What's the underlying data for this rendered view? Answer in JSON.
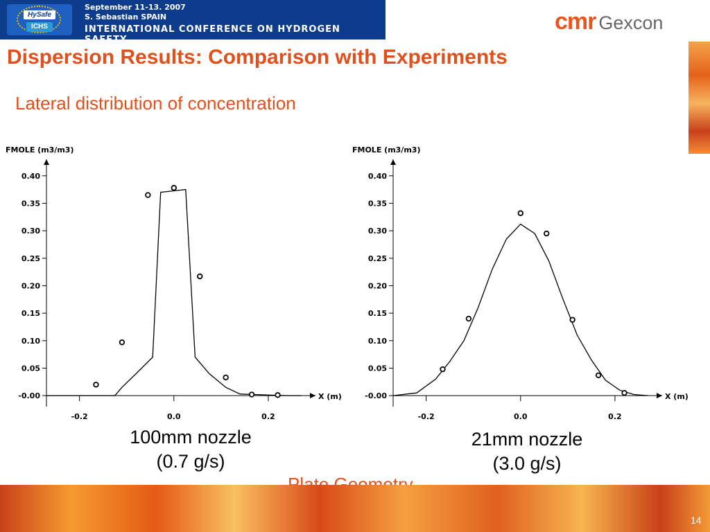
{
  "header": {
    "line1": "September 11-13. 2007",
    "line2": "S. Sebastian SPAIN",
    "line3": "INTERNATIONAL CONFERENCE ON HYDROGEN SAFETY",
    "logo_text_1": "HySafe",
    "logo_text_2": "ICHS",
    "brand_1": "cmr",
    "brand_2": "Gexcon"
  },
  "title": "Dispersion Results: Comparison with Experiments",
  "subtitle": "Lateral distribution of concentration",
  "footnote": "Plate Geometry",
  "page_number": "14",
  "captions": {
    "left_1": "100mm nozzle",
    "left_2": "(0.7 g/s)",
    "right_1": "21mm nozzle",
    "right_2": "(3.0 g/s)"
  },
  "colors": {
    "accent": "#e0501c",
    "banner": "#0d3c8c"
  },
  "chart_data": [
    {
      "type": "line",
      "ylabel": "FMOLE (m3/m3)",
      "xlabel": "X (m)",
      "xlim": [
        -0.27,
        0.3
      ],
      "ylim": [
        -0.02,
        0.43
      ],
      "xticks": [
        -0.2,
        0.0,
        0.2
      ],
      "xtick_labels": [
        "-0.2",
        "0.0",
        "0.2"
      ],
      "yticks": [
        0.0,
        0.05,
        0.1,
        0.15,
        0.2,
        0.25,
        0.3,
        0.35,
        0.4
      ],
      "ytick_labels": [
        "-0.00",
        "0.05",
        "0.10",
        "0.15",
        "0.20",
        "0.25",
        "0.30",
        "0.35",
        "0.40"
      ],
      "grid": false,
      "series": [
        {
          "kind": "line",
          "points": [
            [
              -0.27,
              0.0
            ],
            [
              -0.125,
              0.0
            ],
            [
              -0.11,
              0.015
            ],
            [
              -0.08,
              0.04
            ],
            [
              -0.045,
              0.07
            ],
            [
              -0.028,
              0.37
            ],
            [
              0.025,
              0.375
            ],
            [
              0.045,
              0.07
            ],
            [
              0.075,
              0.04
            ],
            [
              0.11,
              0.015
            ],
            [
              0.14,
              0.003
            ],
            [
              0.24,
              0.0
            ],
            [
              0.27,
              0.0
            ]
          ]
        },
        {
          "kind": "scatter",
          "points": [
            [
              -0.165,
              0.02
            ],
            [
              -0.11,
              0.097
            ],
            [
              -0.055,
              0.365
            ],
            [
              0.0,
              0.378
            ],
            [
              0.055,
              0.217
            ],
            [
              0.11,
              0.033
            ],
            [
              0.165,
              0.002
            ],
            [
              0.22,
              0.001
            ]
          ]
        }
      ]
    },
    {
      "type": "line",
      "ylabel": "FMOLE (m3/m3)",
      "xlabel": "X (m)",
      "xlim": [
        -0.27,
        0.3
      ],
      "ylim": [
        -0.02,
        0.43
      ],
      "xticks": [
        -0.2,
        0.0,
        0.2
      ],
      "xtick_labels": [
        "-0.2",
        "0.0",
        "0.2"
      ],
      "yticks": [
        0.0,
        0.05,
        0.1,
        0.15,
        0.2,
        0.25,
        0.3,
        0.35,
        0.4
      ],
      "ytick_labels": [
        "-0.00",
        "0.05",
        "0.10",
        "0.15",
        "0.20",
        "0.25",
        "0.30",
        "0.35",
        "0.40"
      ],
      "grid": false,
      "series": [
        {
          "kind": "line",
          "points": [
            [
              -0.27,
              0.0
            ],
            [
              -0.22,
              0.005
            ],
            [
              -0.18,
              0.03
            ],
            [
              -0.15,
              0.062
            ],
            [
              -0.12,
              0.1
            ],
            [
              -0.09,
              0.16
            ],
            [
              -0.06,
              0.23
            ],
            [
              -0.03,
              0.285
            ],
            [
              0.0,
              0.312
            ],
            [
              0.03,
              0.295
            ],
            [
              0.06,
              0.245
            ],
            [
              0.09,
              0.175
            ],
            [
              0.12,
              0.11
            ],
            [
              0.15,
              0.065
            ],
            [
              0.18,
              0.028
            ],
            [
              0.21,
              0.01
            ],
            [
              0.24,
              0.002
            ],
            [
              0.27,
              0.0
            ]
          ]
        },
        {
          "kind": "scatter",
          "points": [
            [
              -0.165,
              0.048
            ],
            [
              -0.11,
              0.14
            ],
            [
              0.0,
              0.332
            ],
            [
              0.055,
              0.295
            ],
            [
              0.11,
              0.138
            ],
            [
              0.165,
              0.037
            ],
            [
              0.22,
              0.005
            ]
          ]
        }
      ]
    }
  ]
}
